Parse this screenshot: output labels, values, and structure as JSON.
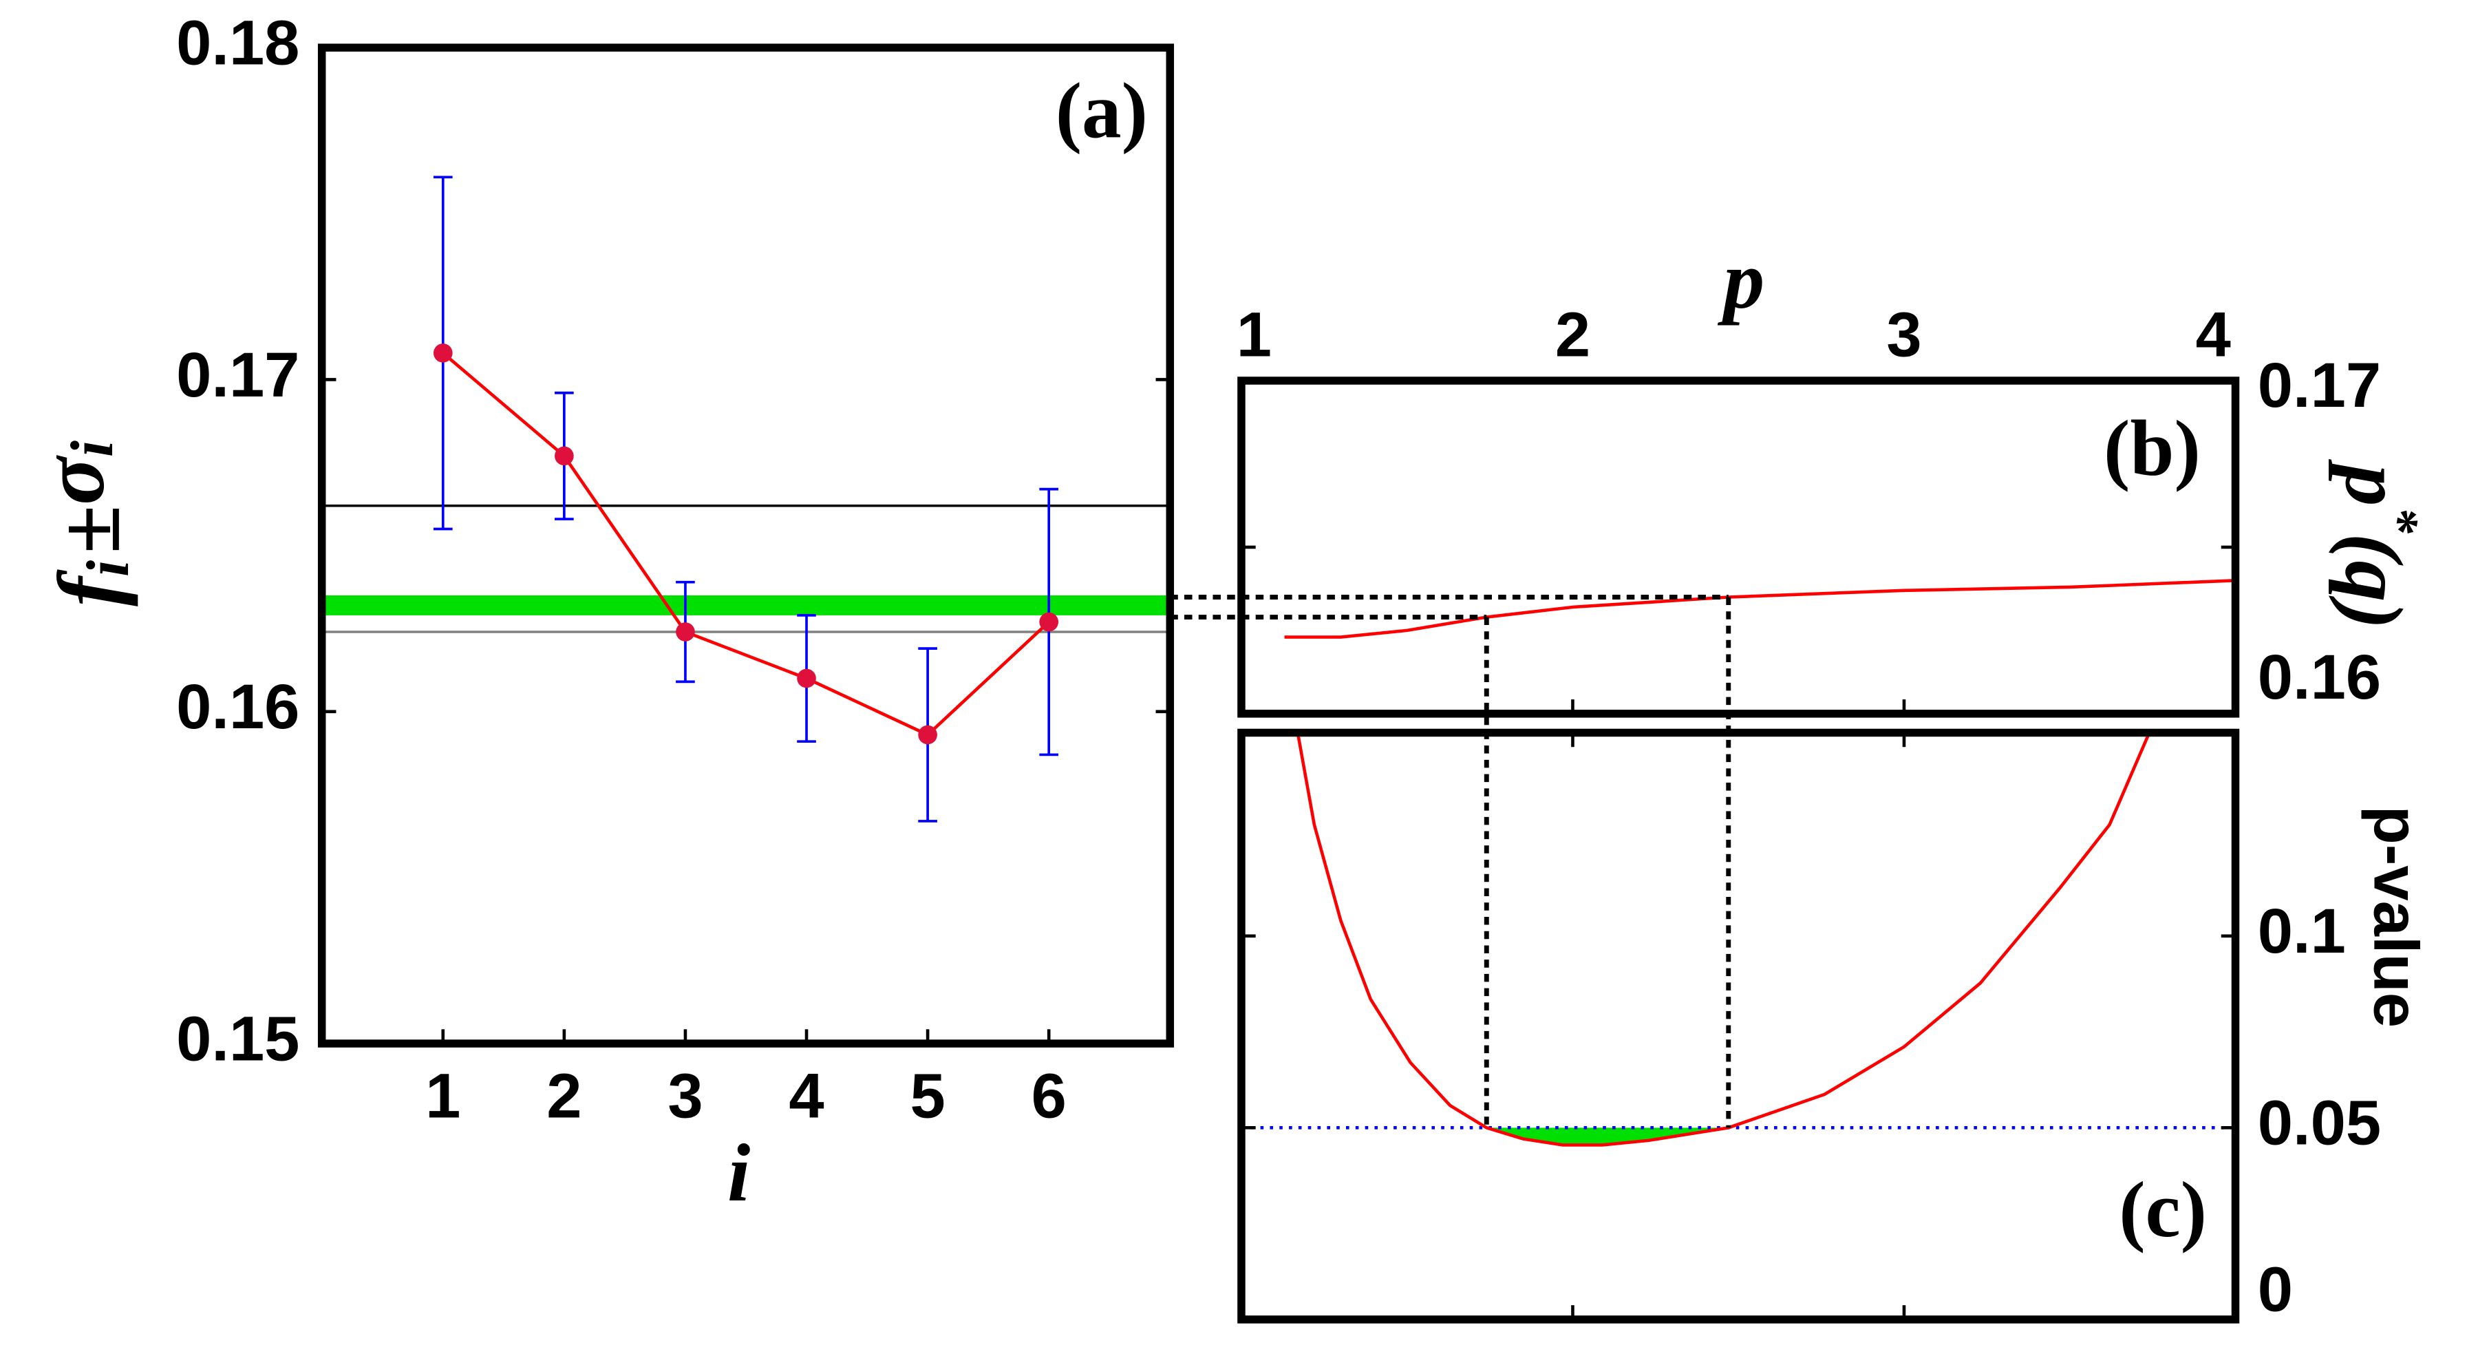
{
  "chart_data": [
    {
      "type": "errorbar",
      "panel_label": "(a)",
      "xlabel": "i",
      "ylabel": [
        "f",
        "i",
        "±",
        "σ",
        "i"
      ],
      "x": [
        1,
        2,
        3,
        4,
        5,
        6
      ],
      "xlim": [
        0,
        7
      ],
      "xticks": [
        1,
        2,
        3,
        4,
        5,
        6
      ],
      "ylim": [
        0.15,
        0.18
      ],
      "yticks": [
        0.15,
        0.16,
        0.17,
        0.18
      ],
      "values": [
        0.1708,
        0.1677,
        0.1624,
        0.161,
        0.1593,
        0.1627
      ],
      "errors": [
        0.0053,
        0.0019,
        0.0015,
        0.0019,
        0.0026,
        0.004
      ],
      "color": "#ff0000",
      "marker_color": "#e0103c",
      "error_color": "#0000ff",
      "hlines": [
        {
          "value": 0.1662,
          "color": "#000000"
        },
        {
          "value": 0.1624,
          "color": "#808080"
        }
      ],
      "band": {
        "range": [
          0.1629,
          0.1635
        ],
        "color": "#00e000"
      }
    },
    {
      "type": "line",
      "panel_label": "(b)",
      "xlabel": "p",
      "ylabel": [
        "p",
        "*",
        "(q)"
      ],
      "x": [
        1.13,
        1.3,
        1.5,
        1.74,
        2.0,
        2.47,
        3.0,
        3.5,
        4.0
      ],
      "values": [
        0.1623,
        0.1623,
        0.1625,
        0.1629,
        0.1632,
        0.1635,
        0.1637,
        0.1638,
        0.164
      ],
      "xlim": [
        1,
        4
      ],
      "xticks": [
        1,
        2,
        3,
        4
      ],
      "ylim": [
        0.16,
        0.17
      ],
      "yticks": [
        0.16,
        0.17
      ],
      "yminor": [
        0.165
      ],
      "color": "#ff0000"
    },
    {
      "type": "line",
      "panel_label": "(c)",
      "ylabel": [
        "p-value"
      ],
      "x": [
        1.17,
        1.22,
        1.3,
        1.39,
        1.51,
        1.63,
        1.74,
        1.85,
        1.97,
        2.09,
        2.23,
        2.47,
        2.76,
        3.0,
        3.23,
        3.47,
        3.62,
        3.74
      ],
      "values": [
        0.153,
        0.129,
        0.104,
        0.0835,
        0.067,
        0.0558,
        0.05,
        0.0471,
        0.0455,
        0.0455,
        0.0467,
        0.05,
        0.0587,
        0.0711,
        0.0877,
        0.1125,
        0.129,
        0.153
      ],
      "xlim": [
        1,
        4
      ],
      "xticks": [
        2,
        3
      ],
      "ylim": [
        0,
        0.153
      ],
      "yticks": [
        0,
        0.05,
        0.1
      ],
      "threshold": 0.05,
      "threshold_color": "#0000ff",
      "interval": [
        1.74,
        2.47
      ],
      "fill_color": "#00e000",
      "color": "#ff0000"
    }
  ]
}
